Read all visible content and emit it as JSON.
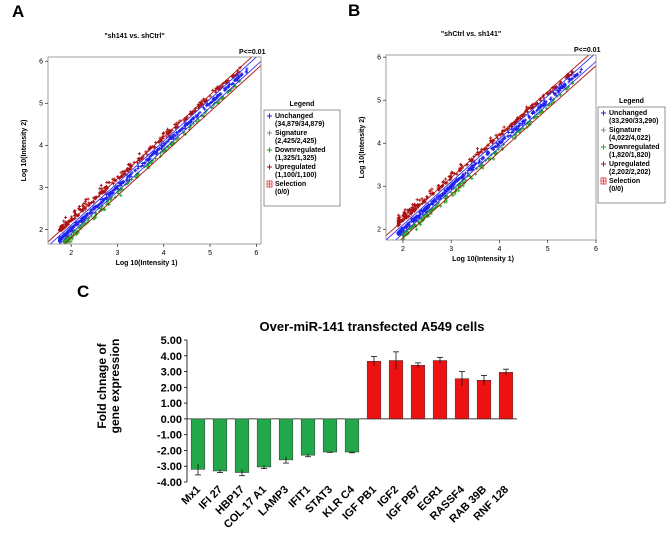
{
  "panels": {
    "a_label": "A",
    "b_label": "B",
    "c_label": "C"
  },
  "chart_data": [
    {
      "panel": "A",
      "type": "scatter",
      "title": "\"sh141 vs. shCtrl\"",
      "pvalue_label": "P<=0.01",
      "xlabel": "Log 10(Intensity 1)",
      "ylabel": "Log 10(Intensity 2)",
      "xlim": [
        1.5,
        6.1
      ],
      "ylim": [
        1.65,
        6.1
      ],
      "xticks": [
        2,
        3,
        4,
        5,
        6
      ],
      "yticks": [
        2,
        3,
        4,
        5,
        6
      ],
      "legend_title": "Legend",
      "legend_position": "right",
      "legend": [
        {
          "name": "Unchanged",
          "count": "(34,879/34,879)",
          "color": "#2222ee",
          "marker": "+"
        },
        {
          "name": "Signature",
          "count": "(2,425/2,425)",
          "color": "#888888",
          "marker": "+"
        },
        {
          "name": "Downregulated",
          "count": "(1,325/1,325)",
          "color": "#22aa22",
          "marker": "+"
        },
        {
          "name": "Upregulated",
          "count": "(1,100/1,100)",
          "color": "#aa1111",
          "marker": "+"
        },
        {
          "name": "Selection",
          "count": "(0/0)",
          "color": "#ee2222",
          "marker": "box"
        }
      ],
      "fold_lines_log10": [
        0.1,
        0.2
      ]
    },
    {
      "panel": "B",
      "type": "scatter",
      "title": "\"shCtrl vs. sh141\"",
      "pvalue_label": "P<=0.01",
      "xlabel": "Log 10(Intensity 1)",
      "ylabel": "Log 10(Intensity 2)",
      "xlim": [
        1.65,
        6.0
      ],
      "ylim": [
        1.75,
        6.05
      ],
      "xticks": [
        2,
        3,
        4,
        5,
        6
      ],
      "yticks": [
        2,
        3,
        4,
        5,
        6
      ],
      "legend_title": "Legend",
      "legend_position": "right",
      "legend": [
        {
          "name": "Unchanged",
          "count": "(33,290/33,290)",
          "color": "#2222ee",
          "marker": "+"
        },
        {
          "name": "Signature",
          "count": "(4,022/4,022)",
          "color": "#888888",
          "marker": "+"
        },
        {
          "name": "Downregulated",
          "count": "(1,820/1,820)",
          "color": "#22aa22",
          "marker": "+"
        },
        {
          "name": "Upregulated",
          "count": "(2,202/2,202)",
          "color": "#aa1111",
          "marker": "+"
        },
        {
          "name": "Selection",
          "count": "(0/0)",
          "color": "#ee2222",
          "marker": "box"
        }
      ],
      "fold_lines_log10": [
        0.1,
        0.2
      ]
    },
    {
      "panel": "C",
      "type": "bar",
      "title": "Over-miR-141 transfected A549 cells",
      "ylabel": "Fold chnage of gene expression",
      "ylabel_lines": [
        "Fold chnage of",
        "gene expression"
      ],
      "xlabel": "",
      "ylim": [
        -4.0,
        5.0
      ],
      "yticks": [
        "5.00",
        "4.00",
        "3.00",
        "2.00",
        "1.00",
        "0.00",
        "-1.00",
        "-2.00",
        "-3.00",
        "-4.00"
      ],
      "categories": [
        "Mx1",
        "IFI 27",
        "HBP17",
        "COL 17 A1",
        "LAMP3",
        "IFIT1",
        "STAT3",
        "KLR C4",
        "IGF PB1",
        "IGF2",
        "IGF PB7",
        "EGR1",
        "RASSF4",
        "RAB 39B",
        "RNF 128"
      ],
      "values": [
        -3.2,
        -3.3,
        -3.4,
        -3.05,
        -2.6,
        -2.3,
        -2.1,
        -2.1,
        3.65,
        3.7,
        3.4,
        3.7,
        2.55,
        2.45,
        2.95
      ],
      "errors": [
        0.35,
        0.1,
        0.2,
        0.1,
        0.2,
        0.1,
        0.02,
        0.05,
        0.3,
        0.55,
        0.15,
        0.2,
        0.45,
        0.3,
        0.2
      ],
      "colors": {
        "down": "#22a84a",
        "up": "#ee1111"
      }
    }
  ]
}
